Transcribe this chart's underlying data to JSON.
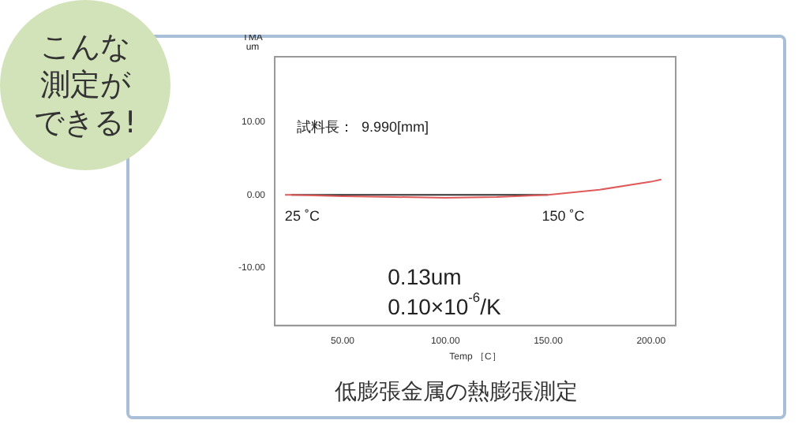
{
  "chart_data": {
    "type": "line",
    "title": "低膨張金属の熱膨張測定",
    "xlabel": "Temp ［C］",
    "ylabel": "TMA um",
    "series": [
      {
        "x": [
          22,
          25,
          50,
          75,
          100,
          125,
          150,
          175,
          200,
          205
        ],
        "values": [
          0,
          0,
          -0.2,
          -0.3,
          -0.4,
          -0.3,
          0,
          0.7,
          1.8,
          2.1
        ],
        "color": "#e05a5a"
      },
      {
        "x": [
          25,
          150
        ],
        "values": [
          0,
          0
        ],
        "color": "#333333"
      }
    ],
    "xlim": [
      17,
      212
    ],
    "ylim": [
      -18,
      19
    ],
    "xticks": [
      {
        "value": 50,
        "label": "50.00"
      },
      {
        "value": 100,
        "label": "100.00"
      },
      {
        "value": 150,
        "label": "150.00"
      },
      {
        "value": 200,
        "label": "200.00"
      }
    ],
    "yticks": [
      {
        "value": -10,
        "label": "-10.00"
      },
      {
        "value": 0,
        "label": "0.00"
      },
      {
        "value": 10,
        "label": "10.00"
      }
    ],
    "annotations": [
      "こんな測定ができる!",
      "試料長：  9.990[mm]",
      "0.13um",
      "0.10×10$^{-6}$/K",
      "25 ˚C",
      "150 ˚C"
    ],
    "grid": false,
    "legend": false,
    "marker": "none",
    "line_style": "solid"
  }
}
